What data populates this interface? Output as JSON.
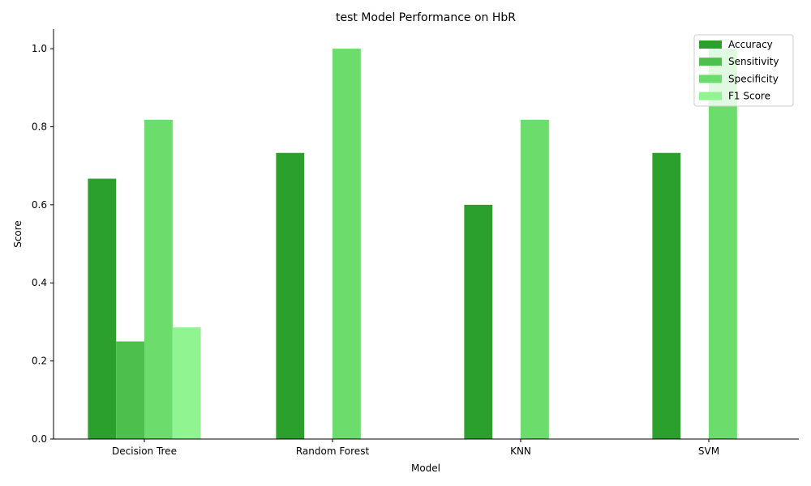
{
  "chart_data": {
    "type": "bar",
    "title": "test Model Performance on HbR",
    "xlabel": "Model",
    "ylabel": "Score",
    "categories": [
      "Decision Tree",
      "Random Forest",
      "KNN",
      "SVM"
    ],
    "ylim": [
      0,
      1.05
    ],
    "yticks": [
      "0.0",
      "0.2",
      "0.4",
      "0.6",
      "0.8",
      "1.0"
    ],
    "legend_position": "top-right",
    "series": [
      {
        "name": "Accuracy",
        "color": "#2ca02c",
        "values": [
          0.667,
          0.733,
          0.6,
          0.733
        ]
      },
      {
        "name": "Sensitivity",
        "color": "#4dbf4d",
        "values": [
          0.25,
          0,
          0,
          0
        ]
      },
      {
        "name": "Specificity",
        "color": "#6cdc6c",
        "values": [
          0.818,
          1.0,
          0.818,
          1.0
        ]
      },
      {
        "name": "F1 Score",
        "color": "#90f590",
        "values": [
          0.286,
          0,
          0,
          0
        ]
      }
    ]
  }
}
